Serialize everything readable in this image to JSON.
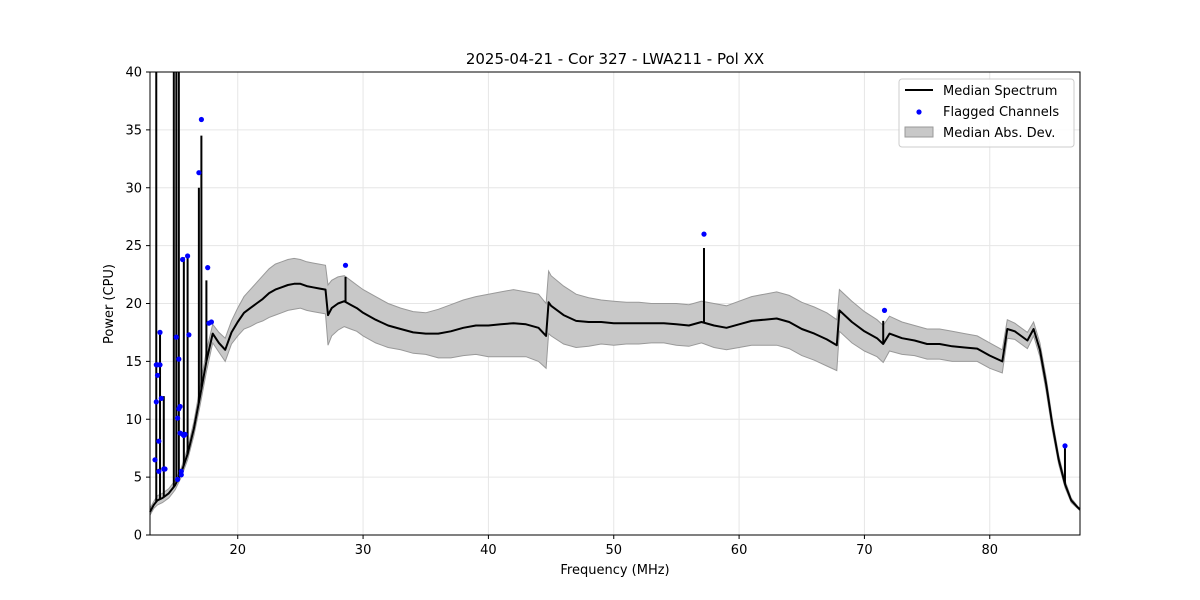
{
  "chart_data": {
    "type": "line",
    "title": "2025-04-21 - Cor 327 - LWA211 - Pol XX",
    "xlabel": "Frequency (MHz)",
    "ylabel": "Power (CPU)",
    "xlim": [
      13.0,
      87.2
    ],
    "ylim": [
      0,
      40
    ],
    "xticks": [
      20,
      30,
      40,
      50,
      60,
      70,
      80
    ],
    "yticks": [
      0,
      5,
      10,
      15,
      20,
      25,
      30,
      35,
      40
    ],
    "grid": true,
    "legend_position": "top-right",
    "legend": [
      "Median Spectrum",
      "Flagged Channels",
      "Median Abs. Dev."
    ],
    "colors": {
      "median": "#000000",
      "flagged": "#0000ff",
      "mad_fill": "#c8c8c8",
      "mad_edge": "#999999"
    },
    "series": [
      {
        "name": "Median Spectrum",
        "x": [
          13.0,
          13.3,
          13.6,
          14.0,
          14.5,
          15.0,
          15.5,
          16.0,
          16.5,
          17.0,
          17.5,
          18.0,
          18.5,
          19.0,
          19.5,
          20.0,
          20.5,
          21.0,
          21.5,
          22.0,
          22.5,
          23.0,
          23.5,
          24.0,
          24.5,
          25.0,
          25.5,
          26.0,
          26.5,
          27.0,
          27.2,
          27.5,
          28.0,
          28.5,
          29.0,
          29.5,
          30.0,
          31.0,
          32.0,
          33.0,
          34.0,
          35.0,
          36.0,
          37.0,
          38.0,
          39.0,
          40.0,
          41.0,
          42.0,
          43.0,
          44.0,
          44.6,
          44.8,
          45.0,
          46.0,
          47.0,
          48.0,
          49.0,
          50.0,
          51.0,
          52.0,
          53.0,
          54.0,
          55.0,
          56.0,
          57.0,
          58.0,
          59.0,
          60.0,
          61.0,
          62.0,
          63.0,
          64.0,
          65.0,
          66.0,
          67.0,
          67.8,
          68.0,
          69.0,
          70.0,
          71.0,
          71.5,
          72.0,
          73.0,
          74.0,
          75.0,
          76.0,
          77.0,
          78.0,
          79.0,
          80.0,
          81.0,
          81.4,
          82.0,
          83.0,
          83.5,
          84.0,
          84.5,
          85.0,
          85.5,
          86.0,
          86.5,
          87.0,
          87.2
        ],
        "values": [
          2.0,
          2.6,
          3.0,
          3.2,
          3.6,
          4.3,
          5.4,
          7.0,
          9.2,
          12.0,
          15.0,
          17.4,
          16.6,
          16.0,
          17.5,
          18.4,
          19.2,
          19.6,
          20.0,
          20.4,
          20.9,
          21.2,
          21.4,
          21.6,
          21.7,
          21.7,
          21.5,
          21.4,
          21.3,
          21.2,
          19.0,
          19.6,
          20.0,
          20.2,
          19.9,
          19.6,
          19.2,
          18.6,
          18.1,
          17.8,
          17.5,
          17.4,
          17.4,
          17.6,
          17.9,
          18.1,
          18.1,
          18.2,
          18.3,
          18.2,
          17.9,
          17.2,
          20.1,
          19.8,
          19.0,
          18.5,
          18.4,
          18.4,
          18.3,
          18.3,
          18.3,
          18.3,
          18.3,
          18.2,
          18.1,
          18.4,
          18.1,
          17.9,
          18.2,
          18.5,
          18.6,
          18.7,
          18.4,
          17.8,
          17.4,
          16.9,
          16.4,
          19.4,
          18.4,
          17.6,
          17.0,
          16.5,
          17.4,
          17.0,
          16.8,
          16.5,
          16.5,
          16.3,
          16.2,
          16.1,
          15.5,
          15.0,
          17.8,
          17.6,
          16.8,
          17.8,
          16.0,
          13.0,
          9.5,
          6.5,
          4.4,
          3.0,
          2.4,
          2.2
        ]
      },
      {
        "name": "Median Abs. Dev.",
        "x": [
          13.0,
          13.3,
          13.6,
          14.0,
          14.5,
          15.0,
          15.5,
          16.0,
          16.5,
          17.0,
          17.5,
          18.0,
          18.5,
          19.0,
          19.5,
          20.0,
          20.5,
          21.0,
          21.5,
          22.0,
          22.5,
          23.0,
          23.5,
          24.0,
          24.5,
          25.0,
          25.5,
          26.0,
          26.5,
          27.0,
          27.2,
          27.5,
          28.0,
          28.5,
          29.0,
          29.5,
          30.0,
          31.0,
          32.0,
          33.0,
          34.0,
          35.0,
          36.0,
          37.0,
          38.0,
          39.0,
          40.0,
          41.0,
          42.0,
          43.0,
          44.0,
          44.6,
          44.8,
          45.0,
          46.0,
          47.0,
          48.0,
          49.0,
          50.0,
          51.0,
          52.0,
          53.0,
          54.0,
          55.0,
          56.0,
          57.0,
          58.0,
          59.0,
          60.0,
          61.0,
          62.0,
          63.0,
          64.0,
          65.0,
          66.0,
          67.0,
          67.8,
          68.0,
          69.0,
          70.0,
          71.0,
          71.5,
          72.0,
          73.0,
          74.0,
          75.0,
          76.0,
          77.0,
          78.0,
          79.0,
          80.0,
          81.0,
          81.4,
          82.0,
          83.0,
          83.5,
          84.0,
          84.5,
          85.0,
          85.5,
          86.0,
          86.5,
          87.0,
          87.2
        ],
        "upper": [
          2.3,
          2.9,
          3.4,
          3.6,
          4.0,
          4.7,
          5.8,
          7.5,
          9.8,
          12.8,
          15.9,
          18.2,
          17.5,
          17.0,
          18.5,
          19.6,
          20.6,
          21.2,
          21.8,
          22.4,
          23.0,
          23.4,
          23.6,
          23.8,
          23.9,
          23.8,
          23.6,
          23.5,
          23.4,
          23.3,
          21.6,
          22.0,
          22.3,
          22.4,
          22.0,
          21.6,
          21.2,
          20.6,
          20.0,
          19.6,
          19.3,
          19.2,
          19.5,
          19.9,
          20.3,
          20.6,
          20.8,
          21.0,
          21.2,
          21.0,
          20.8,
          20.0,
          22.8,
          22.4,
          21.5,
          20.8,
          20.5,
          20.3,
          20.2,
          20.1,
          20.1,
          20.0,
          20.0,
          20.0,
          19.9,
          20.2,
          20.0,
          19.8,
          20.2,
          20.6,
          20.8,
          21.0,
          20.7,
          20.1,
          19.7,
          19.2,
          18.6,
          21.2,
          20.2,
          19.3,
          18.6,
          18.1,
          18.9,
          18.4,
          18.1,
          17.8,
          17.8,
          17.6,
          17.4,
          17.2,
          16.6,
          16.0,
          18.6,
          18.3,
          17.5,
          18.4,
          16.6,
          13.6,
          10.0,
          6.9,
          4.7,
          3.2,
          2.5,
          2.3
        ],
        "lower": [
          1.7,
          2.3,
          2.6,
          2.8,
          3.2,
          3.9,
          5.0,
          6.5,
          8.6,
          11.2,
          14.1,
          16.6,
          15.8,
          15.0,
          16.5,
          17.2,
          17.8,
          18.0,
          18.3,
          18.5,
          18.8,
          19.0,
          19.2,
          19.4,
          19.5,
          19.6,
          19.4,
          19.3,
          19.2,
          19.1,
          16.4,
          17.2,
          17.7,
          18.0,
          17.8,
          17.6,
          17.2,
          16.6,
          16.2,
          16.0,
          15.7,
          15.6,
          15.3,
          15.3,
          15.5,
          15.6,
          15.4,
          15.4,
          15.4,
          15.4,
          15.0,
          14.4,
          17.4,
          17.2,
          16.5,
          16.2,
          16.3,
          16.5,
          16.4,
          16.5,
          16.5,
          16.6,
          16.6,
          16.4,
          16.3,
          16.6,
          16.2,
          16.0,
          16.2,
          16.4,
          16.4,
          16.4,
          16.1,
          15.5,
          15.1,
          14.6,
          14.2,
          17.6,
          16.6,
          15.9,
          15.4,
          14.9,
          15.9,
          15.6,
          15.5,
          15.2,
          15.2,
          15.0,
          15.0,
          15.0,
          14.4,
          14.0,
          17.0,
          16.9,
          16.1,
          17.2,
          15.4,
          12.4,
          9.0,
          6.1,
          4.1,
          2.8,
          2.3,
          2.1
        ]
      }
    ],
    "spikes": [
      {
        "x": 13.5,
        "y": 40.0
      },
      {
        "x": 13.8,
        "y": 17.5
      },
      {
        "x": 14.1,
        "y": 12.0
      },
      {
        "x": 14.9,
        "y": 40.0
      },
      {
        "x": 15.1,
        "y": 40.0
      },
      {
        "x": 15.3,
        "y": 40.0
      },
      {
        "x": 15.7,
        "y": 24.0
      },
      {
        "x": 16.0,
        "y": 24.2
      },
      {
        "x": 16.9,
        "y": 30.0
      },
      {
        "x": 17.1,
        "y": 34.5
      },
      {
        "x": 17.5,
        "y": 22.0
      },
      {
        "x": 28.6,
        "y": 22.3
      },
      {
        "x": 57.2,
        "y": 24.8
      },
      {
        "x": 71.5,
        "y": 18.5
      },
      {
        "x": 86.0,
        "y": 7.5
      }
    ],
    "flagged_channels": {
      "x": [
        13.4,
        13.5,
        13.5,
        13.6,
        13.6,
        13.7,
        13.7,
        13.8,
        13.8,
        13.9,
        14.1,
        14.2,
        15.1,
        15.2,
        15.2,
        15.3,
        15.3,
        15.4,
        15.4,
        15.5,
        15.5,
        15.6,
        15.6,
        15.7,
        15.8,
        16.0,
        16.1,
        16.9,
        17.1,
        17.6,
        17.7,
        17.9,
        28.6,
        57.2,
        71.6,
        86.0
      ],
      "y": [
        6.5,
        11.5,
        14.7,
        13.8,
        14.7,
        5.5,
        8.1,
        17.5,
        14.7,
        11.8,
        5.7,
        5.7,
        17.1,
        4.8,
        10.1,
        15.2,
        10.9,
        8.8,
        11.1,
        5.2,
        5.5,
        8.7,
        23.8,
        8.6,
        8.7,
        24.1,
        17.3,
        31.3,
        35.9,
        23.1,
        18.3,
        18.4,
        23.3,
        26.0,
        19.4,
        7.7
      ]
    }
  }
}
